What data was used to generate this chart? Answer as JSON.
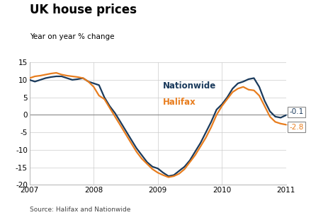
{
  "title": "UK house prices",
  "subtitle": "Year on year % change",
  "source": "Source: Halifax and Nationwide",
  "nationwide_color": "#1a3a5c",
  "halifax_color": "#e87d1e",
  "zero_line_color": "#888888",
  "background_color": "#ffffff",
  "grid_color": "#cccccc",
  "ylim": [
    -20,
    15
  ],
  "yticks": [
    -20,
    -15,
    -10,
    -5,
    0,
    5,
    10,
    15
  ],
  "nationwide_label": "Nationwide",
  "halifax_label": "Halifax",
  "nationwide_end_value": "-0.1",
  "halifax_end_value": "-2.8",
  "nationwide_x": [
    0.0,
    0.083,
    0.167,
    0.25,
    0.333,
    0.417,
    0.5,
    0.583,
    0.667,
    0.75,
    0.833,
    0.917,
    1.0,
    1.083,
    1.167,
    1.25,
    1.333,
    1.417,
    1.5,
    1.583,
    1.667,
    1.75,
    1.833,
    1.917,
    2.0,
    2.083,
    2.167,
    2.25,
    2.333,
    2.417,
    2.5,
    2.583,
    2.667,
    2.75,
    2.833,
    2.917,
    3.0,
    3.083,
    3.167,
    3.25,
    3.333,
    3.417,
    3.5,
    3.583,
    3.667,
    3.75,
    3.833,
    3.917,
    4.0
  ],
  "nationwide_y": [
    10.0,
    9.5,
    10.0,
    10.5,
    10.8,
    11.0,
    11.0,
    10.5,
    10.0,
    10.2,
    10.5,
    9.5,
    9.0,
    8.5,
    5.0,
    2.5,
    0.5,
    -2.0,
    -4.5,
    -7.0,
    -9.5,
    -11.5,
    -13.5,
    -14.8,
    -15.3,
    -16.5,
    -17.5,
    -17.2,
    -16.0,
    -14.8,
    -13.0,
    -10.5,
    -8.0,
    -5.0,
    -2.0,
    1.5,
    3.0,
    5.0,
    7.5,
    9.0,
    9.5,
    10.2,
    10.5,
    8.0,
    4.0,
    1.0,
    -0.5,
    -0.8,
    -0.1
  ],
  "halifax_x": [
    0.0,
    0.083,
    0.167,
    0.25,
    0.333,
    0.417,
    0.5,
    0.583,
    0.667,
    0.75,
    0.833,
    0.917,
    1.0,
    1.083,
    1.167,
    1.25,
    1.333,
    1.417,
    1.5,
    1.583,
    1.667,
    1.75,
    1.833,
    1.917,
    2.0,
    2.083,
    2.167,
    2.25,
    2.333,
    2.417,
    2.5,
    2.583,
    2.667,
    2.75,
    2.833,
    2.917,
    3.0,
    3.083,
    3.167,
    3.25,
    3.333,
    3.417,
    3.5,
    3.583,
    3.667,
    3.75,
    3.833,
    3.917,
    4.0
  ],
  "halifax_y": [
    10.5,
    11.0,
    11.2,
    11.5,
    11.8,
    12.0,
    11.5,
    11.2,
    11.0,
    10.8,
    10.5,
    9.5,
    8.0,
    5.5,
    4.5,
    2.0,
    -0.5,
    -3.0,
    -5.5,
    -8.0,
    -10.5,
    -12.5,
    -14.0,
    -15.5,
    -16.5,
    -17.2,
    -17.8,
    -17.5,
    -16.8,
    -15.5,
    -13.5,
    -11.5,
    -9.0,
    -6.5,
    -3.5,
    0.0,
    2.5,
    4.5,
    6.5,
    7.5,
    8.0,
    7.2,
    7.0,
    5.5,
    2.5,
    -0.5,
    -2.0,
    -2.5,
    -2.8
  ],
  "xtick_positions": [
    0,
    1,
    2,
    3,
    4
  ],
  "xtick_labels": [
    "2007",
    "2008",
    "2009",
    "2010",
    "2011"
  ]
}
